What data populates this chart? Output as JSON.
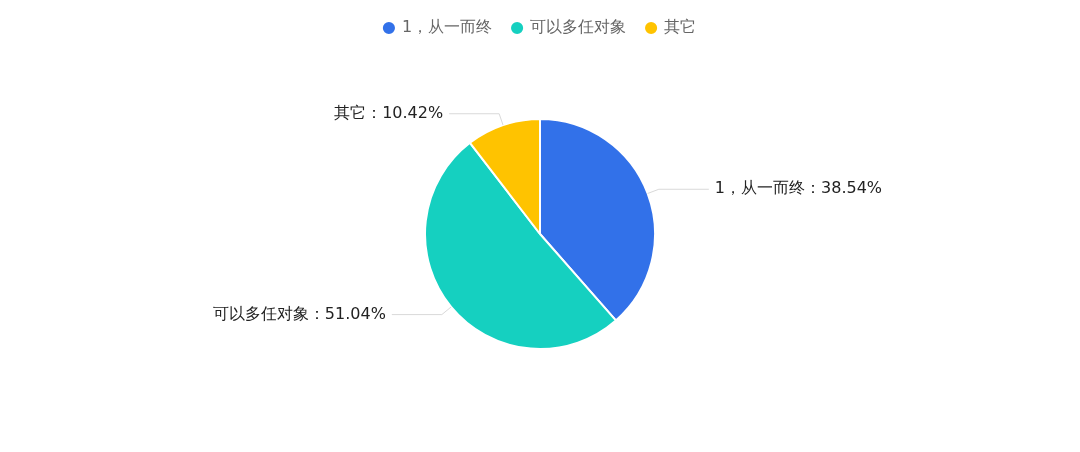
{
  "chart_data": {
    "type": "pie",
    "categories": [
      "1，从一而终",
      "可以多任对象",
      "其它"
    ],
    "values": [
      38.54,
      51.04,
      10.42
    ],
    "colors": [
      "#3271e9",
      "#15d0c0",
      "#ffc300"
    ],
    "value_labels": [
      "1，从一而终：38.54%",
      "可以多任对象：51.04%",
      "其它：10.42%"
    ],
    "legend": "top"
  }
}
